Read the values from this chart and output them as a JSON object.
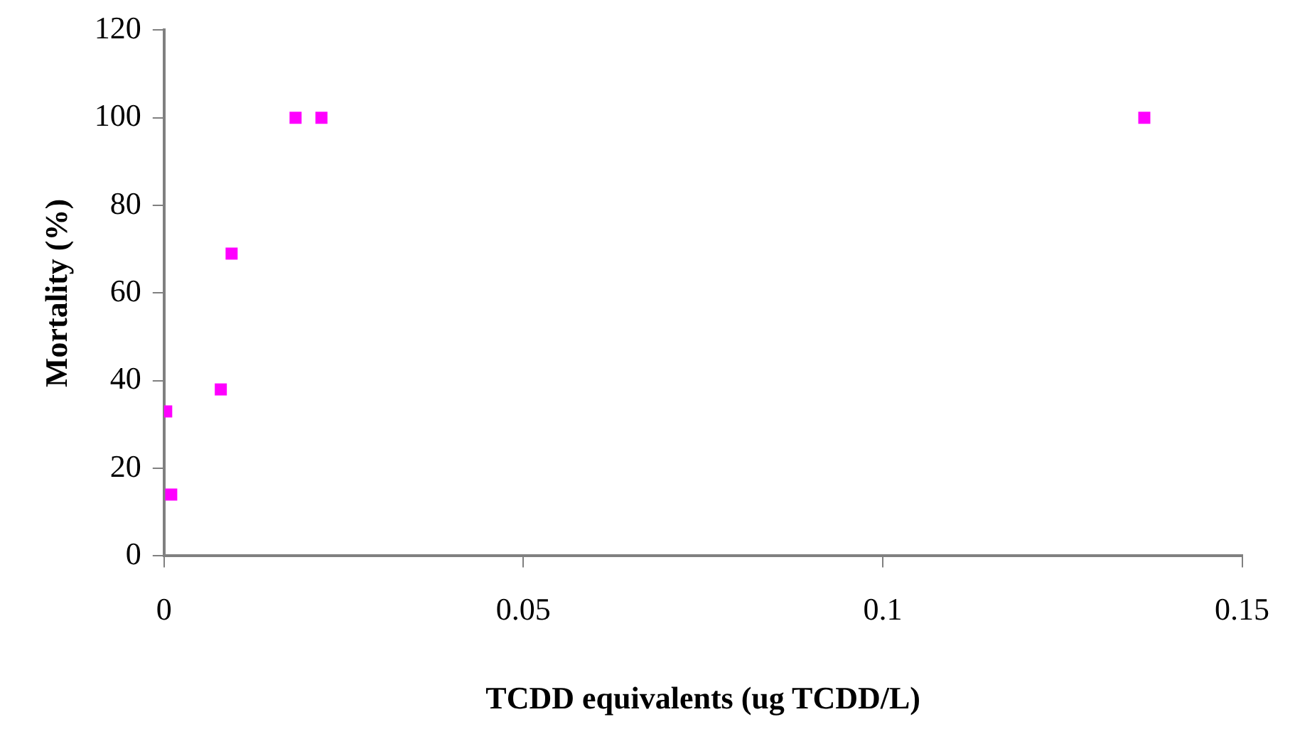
{
  "chart_data": {
    "type": "scatter",
    "xlabel": "TCDD equivalents (ug TCDD/L)",
    "ylabel": "Mortality (%)",
    "x": [
      0.0003,
      0.001,
      0.0079,
      0.0094,
      0.0183,
      0.0219,
      0.1364
    ],
    "series": [
      {
        "color": "#ff00ff",
        "values": [
          33,
          14,
          38,
          69,
          100,
          100,
          100
        ]
      }
    ],
    "xlim": [
      0,
      0.15
    ],
    "xticks": [
      0,
      0.05,
      0.1,
      0.15
    ],
    "ylim": [
      0,
      120
    ],
    "yticks": [
      0,
      20,
      40,
      60,
      80,
      100,
      120
    ],
    "grid": false,
    "legend": false,
    "marker": "square"
  }
}
